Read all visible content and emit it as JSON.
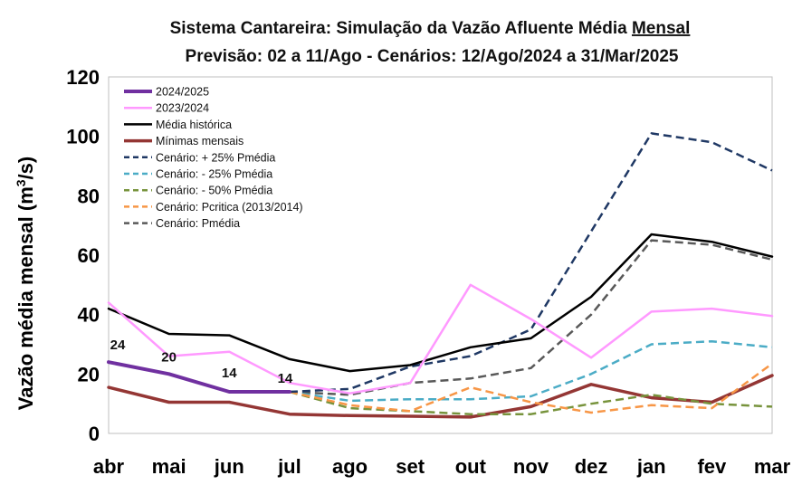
{
  "chart_data": {
    "type": "line",
    "title_line1": "Sistema Cantareira: Simulação da Vazão Afluente Média ",
    "title_line1_underlined": "Mensal",
    "title_line2": "Previsão: 02 a 11/Ago - Cenários: 12/Ago/2024 a 31/Mar/2025",
    "ylabel_main": "Vazão média mensal (m",
    "ylabel_sup": "3",
    "ylabel_end": "/s)",
    "xlabel": "",
    "categories": [
      "abr",
      "mai",
      "jun",
      "jul",
      "ago",
      "set",
      "out",
      "nov",
      "dez",
      "jan",
      "fev",
      "mar"
    ],
    "ylim": [
      0,
      120
    ],
    "yticks": [
      "0",
      "20",
      "40",
      "60",
      "80",
      "100",
      "120"
    ],
    "grid": false,
    "legend_position": "top-left",
    "series": [
      {
        "name": "2024/2025",
        "color": "#7030a0",
        "dash": "solid",
        "width": 4,
        "values": [
          24,
          20,
          14,
          14,
          null,
          null,
          null,
          null,
          null,
          null,
          null,
          null
        ]
      },
      {
        "name": "2023/2024",
        "color": "#ff99ff",
        "dash": "solid",
        "width": 2.5,
        "values": [
          44,
          26,
          27.5,
          17,
          13.5,
          17,
          50,
          38.5,
          25.5,
          41,
          42,
          39.5
        ]
      },
      {
        "name": "Média histórica",
        "color": "#000000",
        "dash": "solid",
        "width": 2.5,
        "values": [
          42,
          33.5,
          33,
          25,
          21,
          23,
          29,
          32,
          46,
          67,
          64.5,
          59.5
        ]
      },
      {
        "name": "Mínimas mensais",
        "color": "#943634",
        "dash": "solid",
        "width": 3.5,
        "values": [
          15.5,
          10.5,
          10.5,
          6.5,
          6,
          5.8,
          5.5,
          9,
          16.5,
          12,
          10.5,
          19.5
        ]
      },
      {
        "name": "Cenário: + 25% Pmédia",
        "color": "#1f3864",
        "dash": "dashed",
        "width": 2.5,
        "values": [
          null,
          null,
          null,
          14,
          15,
          22.5,
          26,
          35,
          68,
          101,
          98,
          88.5
        ]
      },
      {
        "name": "Cenário: - 25% Pmédia",
        "color": "#4bacc6",
        "dash": "dashed",
        "width": 2.5,
        "values": [
          null,
          null,
          null,
          14,
          11,
          11.5,
          11.5,
          12.5,
          20,
          30,
          31,
          29
        ]
      },
      {
        "name": "Cenário: - 50% Pmédia",
        "color": "#77933c",
        "dash": "dashed",
        "width": 2.5,
        "values": [
          null,
          null,
          null,
          14,
          8.5,
          7.5,
          6.5,
          6.5,
          10,
          13,
          10,
          9
        ]
      },
      {
        "name": "Cenário: Pcritica (2013/2014)",
        "color": "#f79646",
        "dash": "dashed",
        "width": 2.5,
        "values": [
          null,
          null,
          null,
          14,
          9.5,
          7.5,
          15.5,
          10.5,
          7,
          9.5,
          8.5,
          23.5
        ]
      },
      {
        "name": "Cenário: Pmédia",
        "color": "#595959",
        "dash": "dashed",
        "width": 2.5,
        "values": [
          null,
          null,
          null,
          14,
          13,
          17,
          18.5,
          22,
          40,
          65,
          63.5,
          58.5
        ]
      }
    ],
    "data_labels": [
      {
        "series": "2024/2025",
        "index": 0,
        "text": "24"
      },
      {
        "series": "2024/2025",
        "index": 1,
        "text": "20"
      },
      {
        "series": "2024/2025",
        "index": 2,
        "text": "14"
      },
      {
        "series": "2024/2025",
        "index": 3,
        "text": "14"
      }
    ]
  }
}
